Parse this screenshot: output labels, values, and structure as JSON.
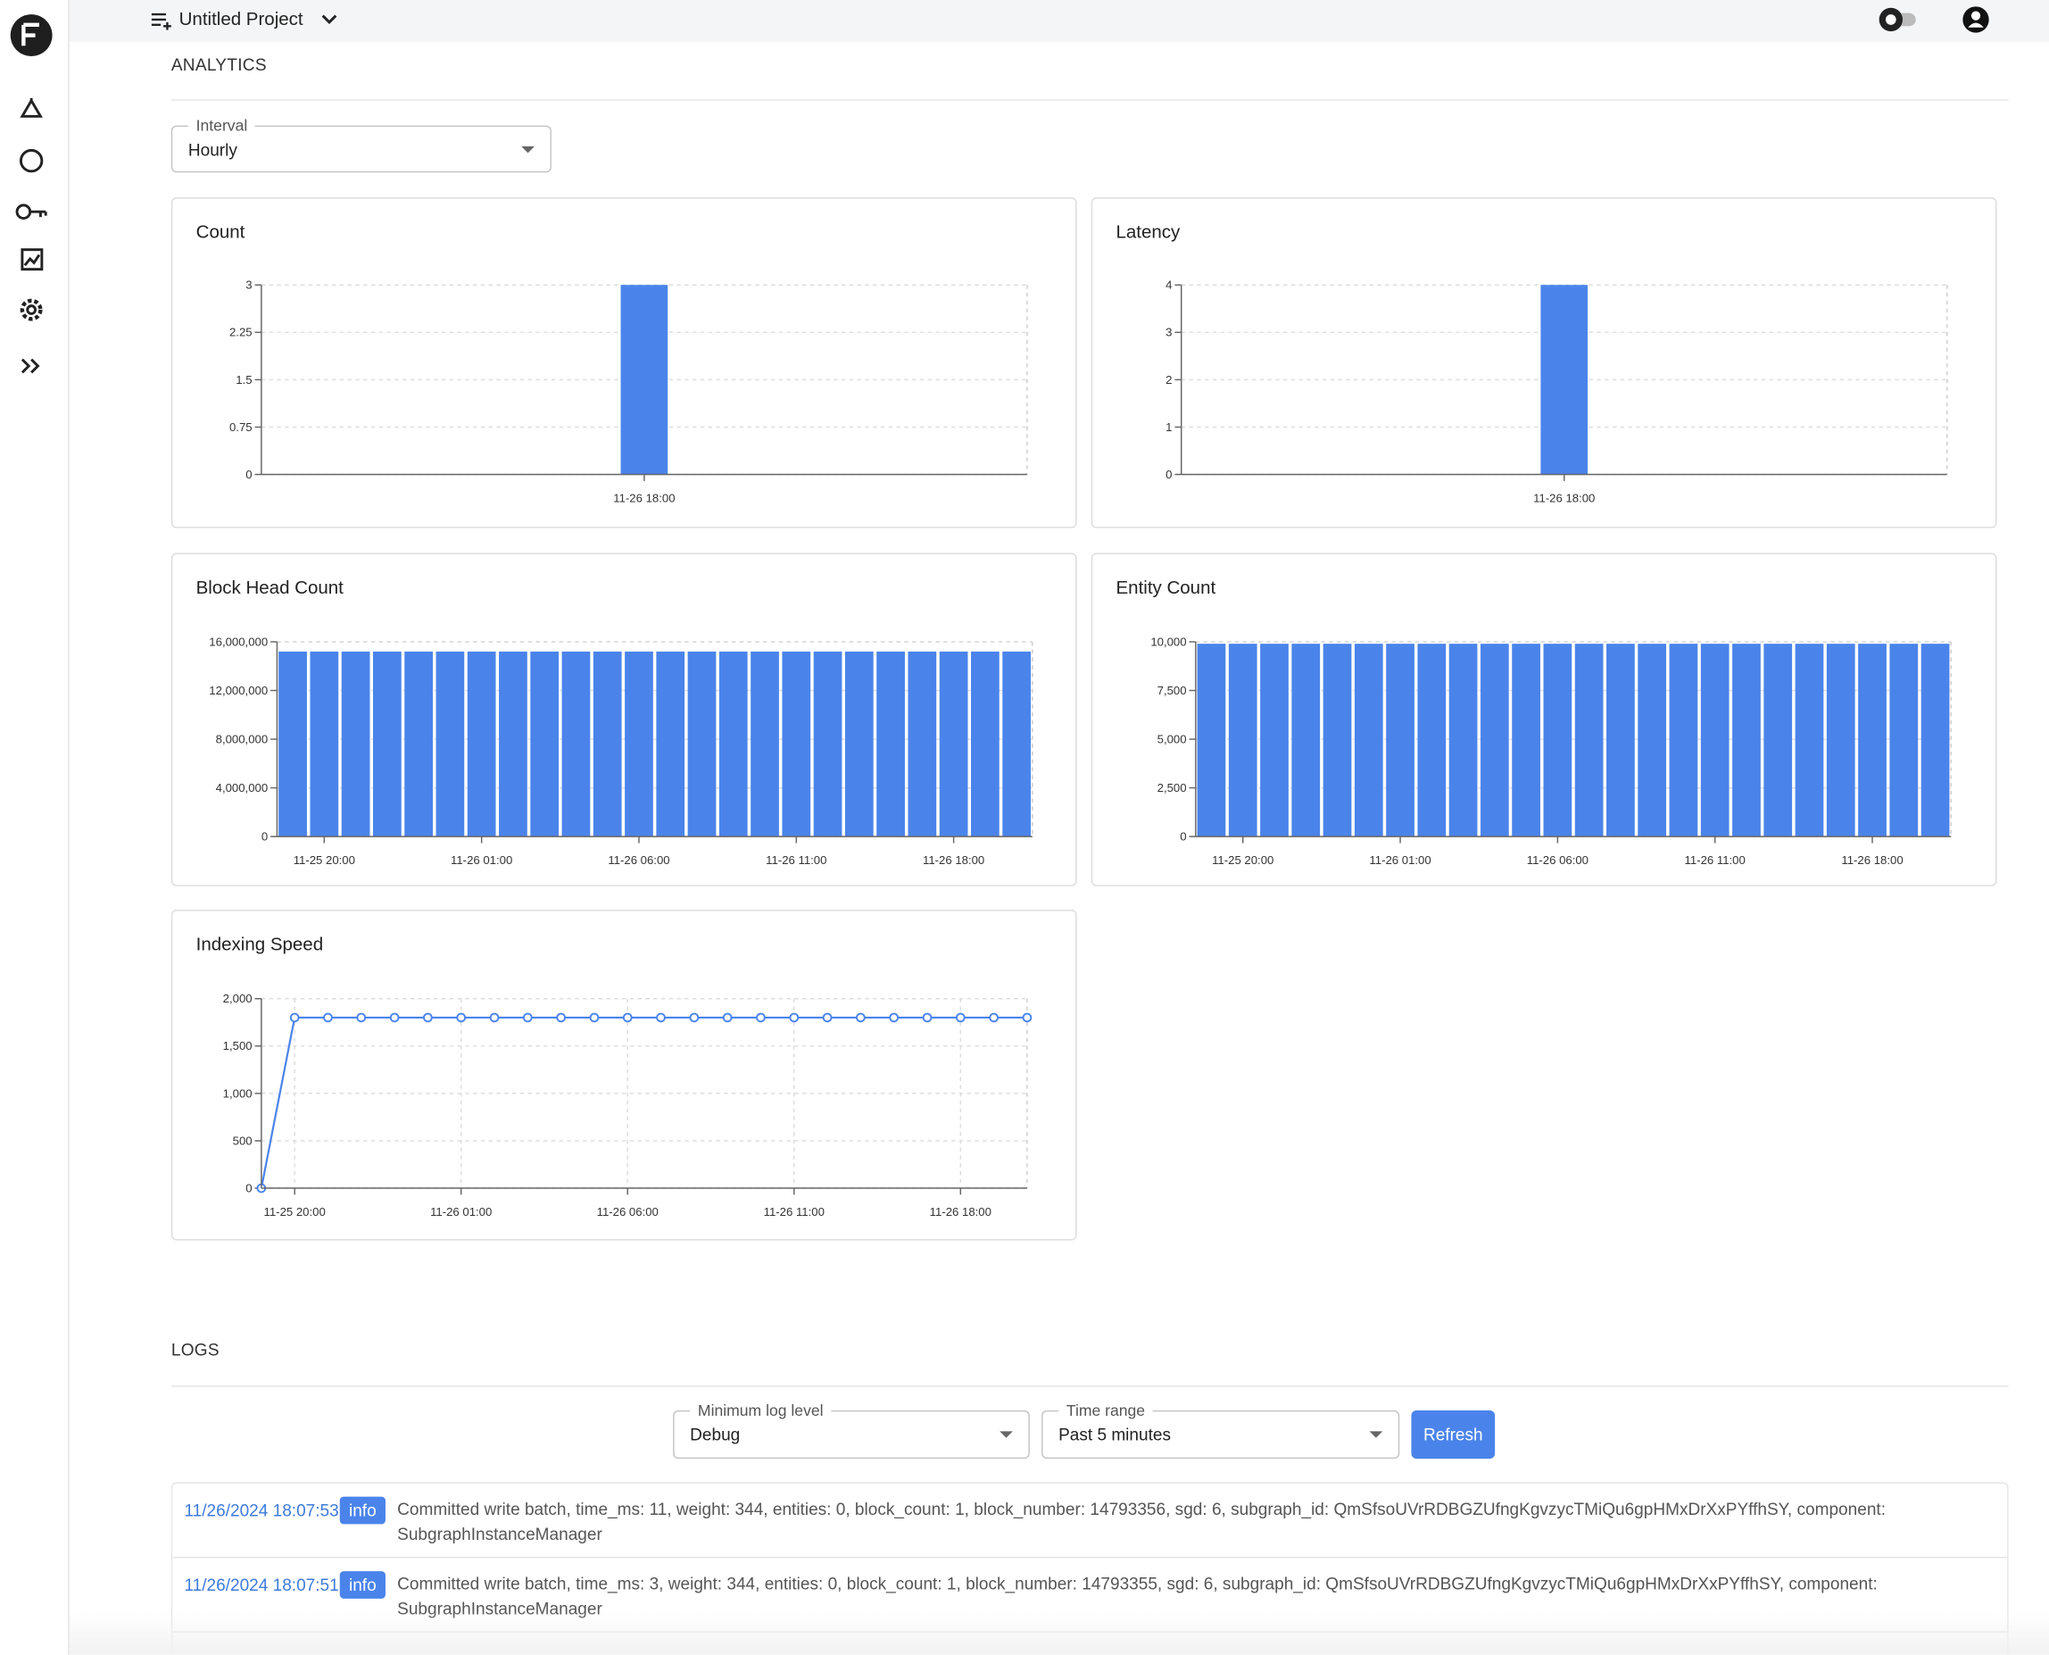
{
  "header": {
    "project": "Untitled Project"
  },
  "analytics": {
    "heading": "ANALYTICS",
    "interval_label": "Interval",
    "interval_value": "Hourly"
  },
  "chart_data": [
    {
      "type": "bar",
      "title": "Count",
      "color": "#4a84eb",
      "grid": true,
      "categories": [
        "11-26 18:00"
      ],
      "values": [
        3
      ],
      "ylim": [
        0,
        3
      ],
      "yticks": [
        0,
        0.75,
        1.5,
        2.25,
        3
      ]
    },
    {
      "type": "bar",
      "title": "Latency",
      "color": "#4a84eb",
      "grid": true,
      "categories": [
        "11-26 18:00"
      ],
      "values": [
        4
      ],
      "ylim": [
        0,
        4
      ],
      "yticks": [
        0,
        1,
        2,
        3,
        4
      ]
    },
    {
      "type": "bar",
      "title": "Block Head Count",
      "color": "#4a84eb",
      "grid": true,
      "categories": [
        null,
        "11-25 20:00",
        null,
        null,
        null,
        null,
        "11-26 01:00",
        null,
        null,
        null,
        null,
        "11-26 06:00",
        null,
        null,
        null,
        null,
        "11-26 11:00",
        null,
        null,
        null,
        null,
        "11-26 18:00",
        null,
        null
      ],
      "values": [
        15200000,
        15200000,
        15200000,
        15200000,
        15200000,
        15200000,
        15200000,
        15200000,
        15200000,
        15200000,
        15200000,
        15200000,
        15200000,
        15200000,
        15200000,
        15200000,
        15200000,
        15200000,
        15200000,
        15200000,
        15200000,
        15200000,
        15200000,
        15200000
      ],
      "ylim": [
        0,
        16000000
      ],
      "yticks": [
        0,
        {
          "value": 4000000,
          "label": "4,000,000"
        },
        {
          "value": 8000000,
          "label": "8,000,000"
        },
        {
          "value": 12000000,
          "label": "12,000,000"
        },
        {
          "value": 16000000,
          "label": "16,000,000"
        }
      ]
    },
    {
      "type": "bar",
      "title": "Entity Count",
      "color": "#4a84eb",
      "grid": true,
      "categories": [
        null,
        "11-25 20:00",
        null,
        null,
        null,
        null,
        "11-26 01:00",
        null,
        null,
        null,
        null,
        "11-26 06:00",
        null,
        null,
        null,
        null,
        "11-26 11:00",
        null,
        null,
        null,
        null,
        "11-26 18:00",
        null,
        null
      ],
      "values": [
        9900,
        9900,
        9900,
        9900,
        9900,
        9900,
        9900,
        9900,
        9900,
        9900,
        9900,
        9900,
        9900,
        9900,
        9900,
        9900,
        9900,
        9900,
        9900,
        9900,
        9900,
        9900,
        9900,
        9900
      ],
      "ylim": [
        0,
        10000
      ],
      "yticks": [
        0,
        {
          "value": 2500,
          "label": "2,500"
        },
        {
          "value": 5000,
          "label": "5,000"
        },
        {
          "value": 7500,
          "label": "7,500"
        },
        {
          "value": 10000,
          "label": "10,000"
        }
      ]
    },
    {
      "type": "line",
      "title": "Indexing Speed",
      "color": "#4a84eb",
      "grid": true,
      "categories": [
        null,
        "11-25 20:00",
        null,
        null,
        null,
        null,
        "11-26 01:00",
        null,
        null,
        null,
        null,
        "11-26 06:00",
        null,
        null,
        null,
        null,
        "11-26 11:00",
        null,
        null,
        null,
        null,
        "11-26 18:00",
        null,
        null
      ],
      "values": [
        0,
        1800,
        1800,
        1800,
        1800,
        1800,
        1800,
        1800,
        1800,
        1800,
        1800,
        1800,
        1800,
        1800,
        1800,
        1800,
        1800,
        1800,
        1800,
        1800,
        1800,
        1800,
        1800,
        1800
      ],
      "ylim": [
        0,
        2000
      ],
      "yticks": [
        0,
        500,
        {
          "value": 1000,
          "label": "1,000"
        },
        {
          "value": 1500,
          "label": "1,500"
        },
        {
          "value": 2000,
          "label": "2,000"
        }
      ]
    }
  ],
  "logs": {
    "heading": "LOGS",
    "level_label": "Minimum log level",
    "level_value": "Debug",
    "range_label": "Time range",
    "range_value": "Past 5 minutes",
    "refresh": "Refresh",
    "entries": [
      {
        "time": "11/26/2024 18:07:53",
        "level": "info",
        "message": "Committed write batch, time_ms: 11, weight: 344, entities: 0, block_count: 1, block_number: 14793356, sgd: 6, subgraph_id: QmSfsoUVrRDBGZUfngKgvzycTMiQu6gpHMxDrXxPYffhSY, component: SubgraphInstanceManager"
      },
      {
        "time": "11/26/2024 18:07:51",
        "level": "info",
        "message": "Committed write batch, time_ms: 3, weight: 344, entities: 0, block_count: 1, block_number: 14793355, sgd: 6, subgraph_id: QmSfsoUVrRDBGZUfngKgvzycTMiQu6gpHMxDrXxPYffhSY, component: SubgraphInstanceManager"
      }
    ]
  }
}
